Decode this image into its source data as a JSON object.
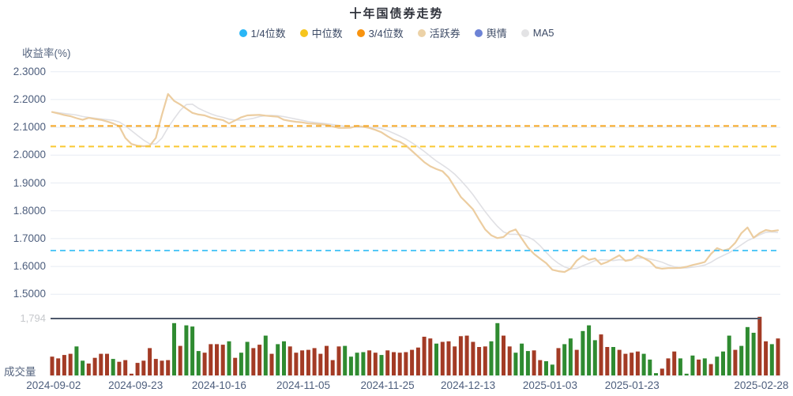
{
  "title": "十年国债券走势",
  "legend": {
    "items": [
      {
        "label": "1/4位数",
        "color": "#29b6f6"
      },
      {
        "label": "中位数",
        "color": "#f6c51d"
      },
      {
        "label": "3/4位数",
        "color": "#f8930f"
      },
      {
        "label": "活跃券",
        "color": "#ecd2a7"
      },
      {
        "label": "舆情",
        "color": "#6d83d5"
      },
      {
        "label": "MA5",
        "color": "#e3e3e5"
      }
    ]
  },
  "y_axis": {
    "label": "收益率(%)"
  },
  "volume_axis": {
    "label": "成交量",
    "max_label": "1,794"
  },
  "chart_data": {
    "type": "line",
    "title": "十年国债券走势",
    "ylabel": "收益率(%)",
    "ylim": [
      1.5,
      2.3
    ],
    "grid": true,
    "legend_position": "top",
    "y_ticks": [
      "2.3000",
      "2.2000",
      "2.1000",
      "2.0000",
      "1.9000",
      "1.8000",
      "1.7000",
      "1.6000",
      "1.5000"
    ],
    "x_tick_labels": [
      "2024-09-02",
      "2024-09-23",
      "2024-10-16",
      "2024-11-05",
      "2024-11-25",
      "2024-12-13",
      "2025-01-03",
      "2025-01-23",
      "2025-02-28"
    ],
    "x_tick_positions": [
      0.002,
      0.115,
      0.23,
      0.346,
      0.462,
      0.573,
      0.686,
      0.799,
      0.977
    ],
    "series": [
      {
        "name": "活跃券",
        "color": "#eccda0",
        "values": [
          2.155,
          2.15,
          2.144,
          2.14,
          2.133,
          2.127,
          2.134,
          2.13,
          2.127,
          2.121,
          2.114,
          2.104,
          2.062,
          2.04,
          2.034,
          2.032,
          2.034,
          2.062,
          2.145,
          2.22,
          2.195,
          2.182,
          2.167,
          2.152,
          2.146,
          2.143,
          2.135,
          2.13,
          2.126,
          2.114,
          2.125,
          2.136,
          2.143,
          2.144,
          2.145,
          2.142,
          2.14,
          2.138,
          2.127,
          2.123,
          2.12,
          2.118,
          2.114,
          2.113,
          2.111,
          2.109,
          2.103,
          2.098,
          2.098,
          2.099,
          2.105,
          2.102,
          2.098,
          2.091,
          2.082,
          2.068,
          2.055,
          2.048,
          2.035,
          2.015,
          1.995,
          1.975,
          1.96,
          1.95,
          1.942,
          1.92,
          1.885,
          1.85,
          1.828,
          1.805,
          1.768,
          1.733,
          1.712,
          1.702,
          1.706,
          1.725,
          1.733,
          1.7,
          1.668,
          1.645,
          1.628,
          1.612,
          1.588,
          1.583,
          1.58,
          1.592,
          1.621,
          1.638,
          1.624,
          1.629,
          1.608,
          1.616,
          1.628,
          1.64,
          1.62,
          1.624,
          1.64,
          1.63,
          1.618,
          1.596,
          1.592,
          1.594,
          1.594,
          1.595,
          1.599,
          1.605,
          1.61,
          1.616,
          1.645,
          1.666,
          1.657,
          1.663,
          1.685,
          1.72,
          1.74,
          1.703,
          1.72,
          1.731,
          1.727,
          1.73
        ]
      },
      {
        "name": "MA5",
        "color": "#e0e0e4",
        "derivation": "trailing 5-point mean of 活跃券"
      }
    ],
    "reference_lines": [
      {
        "name": "3/4位数",
        "value": 2.105,
        "color": "#f5a623"
      },
      {
        "name": "中位数",
        "value": 2.031,
        "color": "#fac832"
      },
      {
        "name": "1/4位数",
        "value": 1.657,
        "color": "#55c8f7"
      }
    ],
    "volume": {
      "type": "bar",
      "axis_max": 1794,
      "axis_max_label": "1,794",
      "up_color": "#a33b25",
      "down_color": "#2f8b31",
      "colors": "rrrrggrrrrgrrrrrrrrrgrgggrrrrgrggrrgrggrrrrrrrrrggggrrgrrrrrrrrgrrrrrrrrggrrgggrrggrggrgggrrgrrrrgggrrrgggrgrgggrgggrrgr",
      "values": [
        592,
        538,
        646,
        682,
        915,
        466,
        377,
        556,
        682,
        682,
        520,
        431,
        484,
        54,
        395,
        466,
        861,
        520,
        466,
        484,
        1650,
        933,
        1579,
        1543,
        771,
        718,
        987,
        987,
        969,
        1076,
        556,
        718,
        1058,
        861,
        969,
        1256,
        682,
        987,
        1076,
        915,
        718,
        789,
        807,
        861,
        682,
        933,
        484,
        915,
        933,
        592,
        718,
        736,
        789,
        718,
        646,
        789,
        736,
        718,
        736,
        807,
        879,
        1220,
        1166,
        1005,
        1058,
        1076,
        915,
        1238,
        1256,
        1058,
        897,
        915,
        1076,
        1650,
        1256,
        915,
        718,
        1005,
        771,
        789,
        484,
        449,
        341,
        861,
        987,
        1166,
        807,
        1400,
        1579,
        1112,
        1292,
        897,
        897,
        807,
        682,
        718,
        754,
        682,
        502,
        72,
        215,
        538,
        754,
        538,
        54,
        628,
        502,
        538,
        359,
        592,
        754,
        1256,
        807,
        933,
        1525,
        1346,
        1848,
        1076,
        987,
        1166
      ]
    }
  }
}
